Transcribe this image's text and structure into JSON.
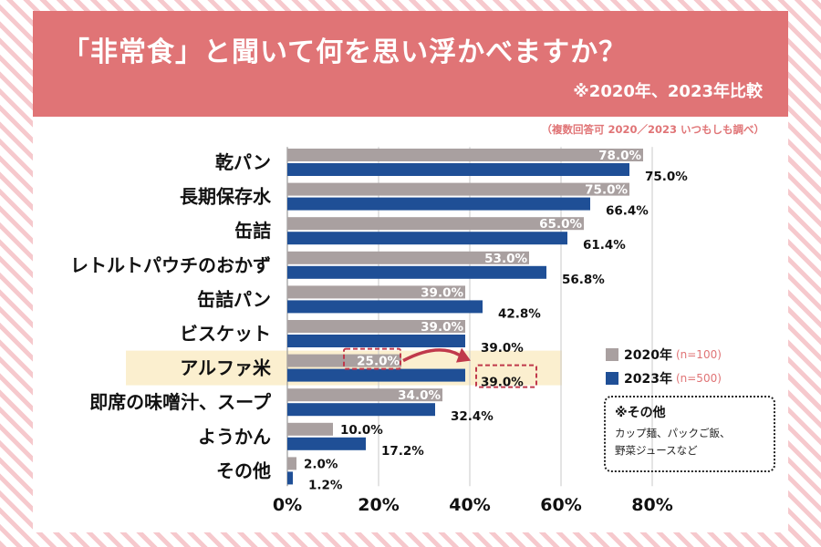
{
  "header": {
    "title": "「非常食」と聞いて何を思い浮かべますか？",
    "subtitle": "※2020年、2023年比較"
  },
  "note_top": "（複数回答可 2020／2023 いつもしも調べ）",
  "legend": {
    "items": [
      {
        "label": "2020年",
        "n": "(n=100)",
        "color": "#a9a0a0"
      },
      {
        "label": "2023年",
        "n": "(n=500)",
        "color": "#1f4f96"
      }
    ]
  },
  "other_box": {
    "title": "※その他",
    "lines": [
      "カップ麺、パックご飯、",
      "野菜ジュースなど"
    ]
  },
  "colors": {
    "accent": "#e07476",
    "highlight": "#fbefcf",
    "s2020": "#a9a0a0",
    "s2023": "#1f4f96"
  },
  "chart_data": {
    "type": "bar",
    "orientation": "horizontal",
    "title": "「非常食」と聞いて何を思い浮かべますか？",
    "categories": [
      "乾パン",
      "長期保存水",
      "缶詰",
      "レトルトパウチのおかず",
      "缶詰パン",
      "ビスケット",
      "アルファ米",
      "即席の味噌汁、スープ",
      "ようかん",
      "その他"
    ],
    "series": [
      {
        "name": "2020年",
        "values": [
          78.0,
          75.0,
          65.0,
          53.0,
          39.0,
          39.0,
          25.0,
          34.0,
          10.0,
          2.0
        ],
        "labels": [
          "78.0%",
          "75.0%",
          "65.0%",
          "53.0%",
          "39.0%",
          "39.0%",
          "25.0%",
          "34.0%",
          "10.0%",
          "2.0%"
        ]
      },
      {
        "name": "2023年",
        "values": [
          75.0,
          66.4,
          61.4,
          56.8,
          42.8,
          39.0,
          39.0,
          32.4,
          17.2,
          1.2
        ],
        "labels": [
          "75.0%",
          "66.4%",
          "61.4%",
          "56.8%",
          "42.8%",
          "39.0%",
          "39.0%",
          "32.4%",
          "17.2%",
          "1.2%"
        ]
      }
    ],
    "xlim": [
      0,
      100
    ],
    "xticks": [
      0,
      20,
      40,
      60,
      80
    ],
    "xtick_labels": [
      "0%",
      "20%",
      "40%",
      "60%",
      "80%"
    ],
    "highlight_category": "アルファ米",
    "grid": true
  }
}
